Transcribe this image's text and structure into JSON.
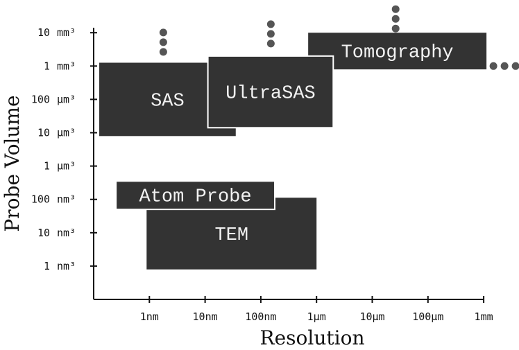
{
  "chart_data": {
    "type": "region-chart",
    "xlabel": "Resolution",
    "ylabel": "Probe Volume",
    "x_ticks": [
      {
        "pos": 1,
        "label": "1nm"
      },
      {
        "pos": 2,
        "label": "10nm"
      },
      {
        "pos": 3,
        "label": "100nm"
      },
      {
        "pos": 4,
        "label": "1μm"
      },
      {
        "pos": 5,
        "label": "10μm"
      },
      {
        "pos": 6,
        "label": "100μm"
      },
      {
        "pos": 7,
        "label": "1mm"
      }
    ],
    "y_ticks": [
      {
        "pos": 1,
        "num": "1",
        "unit": "nm³"
      },
      {
        "pos": 2,
        "num": "10",
        "unit": "nm³"
      },
      {
        "pos": 3,
        "num": "100",
        "unit": "nm³"
      },
      {
        "pos": 4,
        "num": "1",
        "unit": "μm³"
      },
      {
        "pos": 5,
        "num": "10",
        "unit": "μm³"
      },
      {
        "pos": 6,
        "num": "100",
        "unit": "μm³"
      },
      {
        "pos": 7,
        "num": "1",
        "unit": "mm³"
      },
      {
        "pos": 8,
        "num": "10",
        "unit": "mm³"
      }
    ],
    "xlim": [
      0,
      7
    ],
    "ylim": [
      0,
      8
    ],
    "regions": [
      {
        "name": "SAS",
        "x": [
          0.1,
          2.55
        ],
        "y": [
          4.9,
          7.1
        ],
        "outlined": false
      },
      {
        "name": "TEM",
        "x": [
          0.95,
          4.0
        ],
        "y": [
          0.9,
          3.05
        ],
        "outlined": false
      },
      {
        "name": "Tomography",
        "x": [
          3.85,
          7.05
        ],
        "y": [
          6.9,
          8.0
        ],
        "outlined": false
      },
      {
        "name": "UltraSAS",
        "x": [
          2.05,
          4.3
        ],
        "y": [
          5.15,
          7.3
        ],
        "outlined": true
      },
      {
        "name": "Atom Probe",
        "x": [
          0.4,
          3.25
        ],
        "y": [
          2.7,
          3.55
        ],
        "outlined": true
      }
    ],
    "continuation_markers": [
      {
        "direction": "up",
        "x": 1.25,
        "y": 7.3
      },
      {
        "direction": "up",
        "x": 3.18,
        "y": 7.55
      },
      {
        "direction": "up",
        "x": 5.42,
        "y": 8.0
      },
      {
        "direction": "right",
        "x": 7.1,
        "y": 7.0
      }
    ],
    "colors": {
      "region_fill": "#333333",
      "region_text": "#f2f2f2",
      "outline": "#ffffff",
      "dot": "#555555",
      "axis": "#111111"
    }
  }
}
